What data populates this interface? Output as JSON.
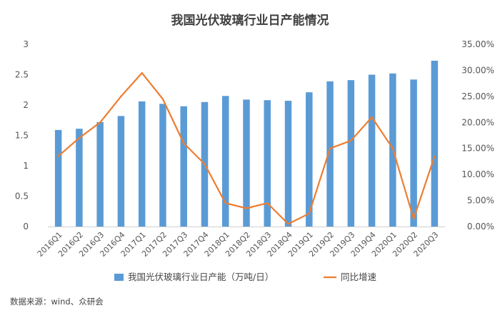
{
  "chart_data": {
    "type": "bar",
    "title": "我国光伏玻璃行业日产能情况",
    "categories": [
      "2016Q1",
      "2016Q2",
      "2016Q3",
      "2016Q4",
      "2017Q1",
      "2017Q2",
      "2017Q3",
      "2017Q4",
      "2018Q1",
      "2018Q2",
      "2018Q3",
      "2018Q4",
      "2019Q1",
      "2019Q2",
      "2019Q3",
      "2019Q4",
      "2020Q1",
      "2020Q2",
      "2020Q3"
    ],
    "series": [
      {
        "name": "我国光伏玻璃行业日产能（万吨/日）",
        "type": "bar",
        "axis": "left",
        "color": "#5b9bd5",
        "values": [
          1.59,
          1.61,
          1.72,
          1.82,
          2.06,
          2.02,
          1.98,
          2.05,
          2.15,
          2.09,
          2.08,
          2.07,
          2.21,
          2.39,
          2.41,
          2.5,
          2.52,
          2.42,
          2.73
        ]
      },
      {
        "name": "同比增速",
        "type": "line",
        "axis": "right",
        "color": "#ed7d31",
        "values": [
          13.5,
          17.0,
          20.0,
          25.0,
          29.5,
          24.5,
          16.0,
          12.0,
          4.5,
          3.5,
          4.5,
          0.5,
          2.5,
          15.0,
          16.5,
          21.0,
          15.0,
          1.5,
          13.5
        ]
      }
    ],
    "y_left": {
      "lim": [
        0,
        3
      ],
      "ticks": [
        "0",
        "0.5",
        "1",
        "1.5",
        "2",
        "2.5",
        "3"
      ]
    },
    "y_right": {
      "lim": [
        0,
        35
      ],
      "ticks": [
        "0.00%",
        "5.00%",
        "10.00%",
        "15.00%",
        "20.00%",
        "25.00%",
        "30.00%",
        "35.00%"
      ]
    },
    "grid": false,
    "legend_position": "bottom"
  },
  "source_note": "数据来源：wind、众研会"
}
